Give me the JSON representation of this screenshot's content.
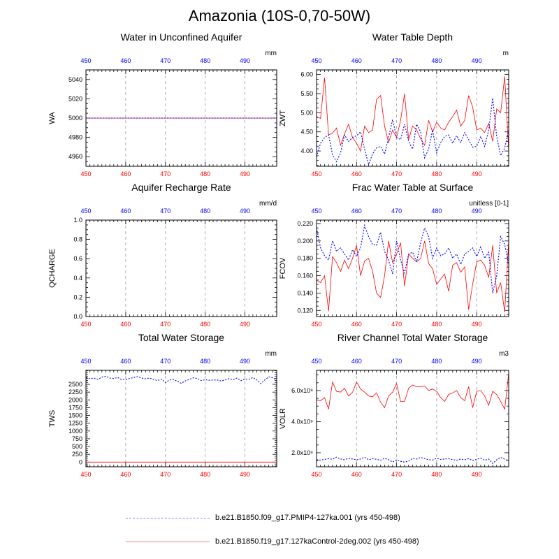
{
  "figure": {
    "title": "Amazonia (10S-0,70-50W)"
  },
  "colors": {
    "control": "#ff0000",
    "pmip": "#0000ff",
    "grid": "#9a9a9a"
  },
  "legend": {
    "pmip_label": "b.e21.B1850.f09_g17.PMIP4-127ka.001 (yrs 450-498)",
    "control_label": "b.e21.B1850.f19_g17.127kaControl-2deg.002 (yrs 450-498)"
  },
  "chart_data": [
    {
      "type": "line",
      "title": "Water in Unconfined Aquifer",
      "ylabel": "WA",
      "units": "mm",
      "xlim": [
        450,
        498
      ],
      "xticks": [
        450,
        460,
        470,
        480,
        490
      ],
      "ylim": [
        4950,
        5050
      ],
      "yticks": [
        4960,
        4980,
        5000,
        5020,
        5040
      ],
      "ytick_labels": [
        "4960",
        "4980",
        "5000",
        "5020",
        "5040"
      ],
      "x": [
        450,
        451,
        452,
        453,
        454,
        455,
        456,
        457,
        458,
        459,
        460,
        461,
        462,
        463,
        464,
        465,
        466,
        467,
        468,
        469,
        470,
        471,
        472,
        473,
        474,
        475,
        476,
        477,
        478,
        479,
        480,
        481,
        482,
        483,
        484,
        485,
        486,
        487,
        488,
        489,
        490,
        491,
        492,
        493,
        494,
        495,
        496,
        497,
        498
      ],
      "series": [
        {
          "name": "control",
          "values": [
            5000,
            5000,
            5000,
            5000,
            5000,
            5000,
            5000,
            5000,
            5000,
            5000,
            5000,
            5000,
            5000,
            5000,
            5000,
            5000,
            5000,
            5000,
            5000,
            5000,
            5000,
            5000,
            5000,
            5000,
            5000,
            5000,
            5000,
            5000,
            5000,
            5000,
            5000,
            5000,
            5000,
            5000,
            5000,
            5000,
            5000,
            5000,
            5000,
            5000,
            5000,
            5000,
            5000,
            5000,
            5000,
            5000,
            5000,
            5000,
            5000
          ]
        },
        {
          "name": "pmip",
          "values": [
            5000,
            5000,
            5000,
            5000,
            5000,
            5000,
            5000,
            5000,
            5000,
            5000,
            5000,
            5000,
            5000,
            5000,
            5000,
            5000,
            5000,
            5000,
            5000,
            5000,
            5000,
            5000,
            5000,
            5000,
            5000,
            5000,
            5000,
            5000,
            5000,
            5000,
            5000,
            5000,
            5000,
            5000,
            5000,
            5000,
            5000,
            5000,
            5000,
            5000,
            5000,
            5000,
            5000,
            5000,
            5000,
            5000,
            5000,
            5000,
            5000
          ]
        }
      ]
    },
    {
      "type": "line",
      "title": "Water Table Depth",
      "ylabel": "ZWT",
      "units": "m",
      "xlim": [
        450,
        498
      ],
      "xticks": [
        450,
        460,
        470,
        480,
        490
      ],
      "ylim": [
        3.6,
        6.12
      ],
      "yticks": [
        4.0,
        4.5,
        5.0,
        5.5,
        6.0
      ],
      "ytick_labels": [
        "4.00",
        "4.50",
        "5.00",
        "5.50",
        "6.00"
      ],
      "x": [
        450,
        451,
        452,
        453,
        454,
        455,
        456,
        457,
        458,
        459,
        460,
        461,
        462,
        463,
        464,
        465,
        466,
        467,
        468,
        469,
        470,
        471,
        472,
        473,
        474,
        475,
        476,
        477,
        478,
        479,
        480,
        481,
        482,
        483,
        484,
        485,
        486,
        487,
        488,
        489,
        490,
        491,
        492,
        493,
        494,
        495,
        496,
        497,
        498
      ],
      "series": [
        {
          "name": "control",
          "values": [
            4.9,
            4.85,
            5.92,
            4.42,
            4.47,
            4.6,
            4.15,
            4.45,
            4.7,
            4.35,
            4.2,
            4.0,
            4.65,
            4.48,
            4.55,
            5.35,
            5.45,
            4.65,
            4.22,
            4.55,
            4.35,
            4.8,
            5.5,
            4.3,
            4.65,
            4.55,
            4.32,
            4.15,
            4.8,
            4.5,
            4.75,
            4.6,
            4.55,
            4.75,
            4.9,
            5.07,
            4.65,
            4.8,
            5.45,
            5.15,
            4.55,
            4.6,
            4.48,
            4.72,
            4.25,
            5.1,
            5.0,
            5.95,
            4.0
          ]
        },
        {
          "name": "pmip",
          "values": [
            3.85,
            4.2,
            4.35,
            4.42,
            3.9,
            3.72,
            3.95,
            4.42,
            4.25,
            4.35,
            4.4,
            4.5,
            4.05,
            3.65,
            3.92,
            4.08,
            4.12,
            3.92,
            4.35,
            4.82,
            4.35,
            4.3,
            4.7,
            4.25,
            4.05,
            4.7,
            4.5,
            3.82,
            4.05,
            4.55,
            3.95,
            4.22,
            4.38,
            4.42,
            4.2,
            4.4,
            4.22,
            4.48,
            4.3,
            4.1,
            4.12,
            4.38,
            4.12,
            4.55,
            5.38,
            4.38,
            3.88,
            4.08,
            4.55
          ]
        }
      ]
    },
    {
      "type": "line",
      "title": "Aquifer Recharge Rate",
      "ylabel": "QCHARGE",
      "units": "mm/d",
      "xlim": [
        450,
        498
      ],
      "xticks": [
        450,
        460,
        470,
        480,
        490
      ],
      "ylim": [
        0,
        1
      ],
      "yticks": [
        0,
        0.2,
        0.4,
        0.6,
        0.8,
        1.0
      ],
      "ytick_labels": [
        "0.0",
        "0.2",
        "0.4",
        "0.6",
        "0.8",
        "1.0"
      ],
      "x": [
        450,
        451,
        452,
        453,
        454,
        455,
        456,
        457,
        458,
        459,
        460,
        461,
        462,
        463,
        464,
        465,
        466,
        467,
        468,
        469,
        470,
        471,
        472,
        473,
        474,
        475,
        476,
        477,
        478,
        479,
        480,
        481,
        482,
        483,
        484,
        485,
        486,
        487,
        488,
        489,
        490,
        491,
        492,
        493,
        494,
        495,
        496,
        497,
        498
      ],
      "series": [
        {
          "name": "control",
          "values": [
            0,
            0,
            0,
            0,
            0,
            0,
            0,
            0,
            0,
            0,
            0,
            0,
            0,
            0,
            0,
            0,
            0,
            0,
            0,
            0,
            0,
            0,
            0,
            0,
            0,
            0,
            0,
            0,
            0,
            0,
            0,
            0,
            0,
            0,
            0,
            0,
            0,
            0,
            0,
            0,
            0,
            0,
            0,
            0,
            0,
            0,
            0,
            0,
            0
          ]
        },
        {
          "name": "pmip",
          "values": [
            0,
            0,
            0,
            0,
            0,
            0,
            0,
            0,
            0,
            0,
            0,
            0,
            0,
            0,
            0,
            0,
            0,
            0,
            0,
            0,
            0,
            0,
            0,
            0,
            0,
            0,
            0,
            0,
            0,
            0,
            0,
            0,
            0,
            0,
            0,
            0,
            0,
            0,
            0,
            0,
            0,
            0,
            0,
            0,
            0,
            0,
            0,
            0,
            0
          ]
        }
      ]
    },
    {
      "type": "line",
      "title": "Frac Water Table at Surface",
      "ylabel": "FCOV",
      "units": "unitless [0-1]",
      "xlim": [
        450,
        498
      ],
      "xticks": [
        450,
        460,
        470,
        480,
        490
      ],
      "ylim": [
        0.113,
        0.224
      ],
      "yticks": [
        0.12,
        0.14,
        0.16,
        0.18,
        0.2,
        0.22
      ],
      "ytick_labels": [
        "0.120",
        "0.140",
        "0.160",
        "0.180",
        "0.200",
        "0.220"
      ],
      "x": [
        450,
        451,
        452,
        453,
        454,
        455,
        456,
        457,
        458,
        459,
        460,
        461,
        462,
        463,
        464,
        465,
        466,
        467,
        468,
        469,
        470,
        471,
        472,
        473,
        474,
        475,
        476,
        477,
        478,
        479,
        480,
        481,
        482,
        483,
        484,
        485,
        486,
        487,
        488,
        489,
        490,
        491,
        492,
        493,
        494,
        495,
        496,
        497,
        498
      ],
      "series": [
        {
          "name": "control",
          "values": [
            0.155,
            0.152,
            0.16,
            0.119,
            0.182,
            0.175,
            0.165,
            0.178,
            0.168,
            0.18,
            0.195,
            0.16,
            0.177,
            0.18,
            0.165,
            0.14,
            0.135,
            0.16,
            0.2,
            0.175,
            0.185,
            0.198,
            0.148,
            0.185,
            0.18,
            0.176,
            0.18,
            0.2,
            0.174,
            0.168,
            0.15,
            0.156,
            0.162,
            0.142,
            0.172,
            0.175,
            0.164,
            0.17,
            0.121,
            0.15,
            0.176,
            0.178,
            0.172,
            0.158,
            0.195,
            0.14,
            0.152,
            0.118,
            0.2
          ]
        },
        {
          "name": "pmip",
          "values": [
            0.215,
            0.192,
            0.183,
            0.178,
            0.2,
            0.188,
            0.192,
            0.185,
            0.178,
            0.19,
            0.182,
            0.192,
            0.218,
            0.205,
            0.196,
            0.195,
            0.21,
            0.188,
            0.178,
            0.162,
            0.2,
            0.178,
            0.163,
            0.185,
            0.187,
            0.176,
            0.198,
            0.215,
            0.205,
            0.18,
            0.192,
            0.183,
            0.185,
            0.192,
            0.18,
            0.185,
            0.173,
            0.185,
            0.188,
            0.192,
            0.182,
            0.193,
            0.18,
            0.187,
            0.14,
            0.16,
            0.205,
            0.196,
            0.173
          ]
        }
      ]
    },
    {
      "type": "line",
      "title": "Total Water Storage",
      "ylabel": "TWS",
      "units": "mm",
      "xlim": [
        450,
        498
      ],
      "xticks": [
        450,
        460,
        470,
        480,
        490
      ],
      "ylim": [
        -150,
        2950
      ],
      "yticks": [
        0,
        250,
        500,
        750,
        1000,
        1250,
        1500,
        1750,
        2000,
        2250,
        2500
      ],
      "ytick_labels": [
        "0",
        "250",
        "500",
        "750",
        "1000",
        "1250",
        "1500",
        "1750",
        "2000",
        "2250",
        "2500"
      ],
      "x": [
        450,
        451,
        452,
        453,
        454,
        455,
        456,
        457,
        458,
        459,
        460,
        461,
        462,
        463,
        464,
        465,
        466,
        467,
        468,
        469,
        470,
        471,
        472,
        473,
        474,
        475,
        476,
        477,
        478,
        479,
        480,
        481,
        482,
        483,
        484,
        485,
        486,
        487,
        488,
        489,
        490,
        491,
        492,
        493,
        494,
        495,
        496,
        497,
        498
      ],
      "series": [
        {
          "name": "control",
          "values": [
            0,
            0,
            0,
            0,
            0,
            0,
            0,
            0,
            0,
            0,
            0,
            0,
            0,
            0,
            0,
            0,
            0,
            0,
            0,
            0,
            0,
            0,
            0,
            0,
            0,
            0,
            0,
            0,
            0,
            0,
            0,
            0,
            0,
            0,
            0,
            0,
            0,
            0,
            0,
            0,
            0,
            0,
            0,
            0,
            0,
            0,
            0,
            0,
            0
          ]
        },
        {
          "name": "pmip",
          "values": [
            2720,
            2680,
            2700,
            2660,
            2730,
            2760,
            2700,
            2690,
            2720,
            2650,
            2660,
            2690,
            2720,
            2750,
            2700,
            2680,
            2700,
            2660,
            2620,
            2670,
            2560,
            2640,
            2660,
            2600,
            2530,
            2610,
            2660,
            2710,
            2690,
            2620,
            2650,
            2630,
            2640,
            2640,
            2610,
            2640,
            2680,
            2650,
            2700,
            2620,
            2670,
            2660,
            2720,
            2640,
            2520,
            2640,
            2740,
            2710,
            2640
          ]
        }
      ]
    },
    {
      "type": "line",
      "title": "River Channel Total Water Storage",
      "ylabel": "VOLR",
      "units": "m3",
      "xlim": [
        450,
        498
      ],
      "xticks": [
        450,
        460,
        470,
        480,
        490
      ],
      "ylim": [
        1100000000,
        7300000000
      ],
      "yticks": [
        2000000000,
        4000000000,
        6000000000
      ],
      "ytick_labels": [
        "2.0x10⁹",
        "4.0x10⁹",
        "6.0x10⁹"
      ],
      "x": [
        450,
        451,
        452,
        453,
        454,
        455,
        456,
        457,
        458,
        459,
        460,
        461,
        462,
        463,
        464,
        465,
        466,
        467,
        468,
        469,
        470,
        471,
        472,
        473,
        474,
        475,
        476,
        477,
        478,
        479,
        480,
        481,
        482,
        483,
        484,
        485,
        486,
        487,
        488,
        489,
        490,
        491,
        492,
        493,
        494,
        495,
        496,
        497,
        498
      ],
      "series": [
        {
          "name": "control",
          "values": [
            5400000000,
            5350000000,
            5550000000,
            4800000000,
            6550000000,
            5950000000,
            5900000000,
            6150000000,
            5650000000,
            5900000000,
            6550000000,
            6100000000,
            5900000000,
            5650000000,
            5600000000,
            5850000000,
            5250000000,
            4900000000,
            5650000000,
            5900000000,
            6450000000,
            5300000000,
            5300000000,
            6150000000,
            6350000000,
            6250000000,
            6250000000,
            6300000000,
            6000000000,
            6100000000,
            5950000000,
            5550000000,
            5300000000,
            5750000000,
            5850000000,
            6000000000,
            5550000000,
            5350000000,
            6250000000,
            4900000000,
            5950000000,
            6000000000,
            5650000000,
            5050000000,
            5950000000,
            5750000000,
            5300000000,
            4800000000,
            7100000000
          ]
        },
        {
          "name": "pmip",
          "values": [
            1550000000,
            1530000000,
            1570000000,
            1620000000,
            1580000000,
            1720000000,
            1600000000,
            1550000000,
            1650000000,
            1600000000,
            1550000000,
            1600000000,
            1720000000,
            1550000000,
            1620000000,
            1580000000,
            1520000000,
            1650000000,
            1560000000,
            1400000000,
            1550000000,
            1450000000,
            1400000000,
            1470000000,
            1650000000,
            1600000000,
            1700000000,
            1620000000,
            1560000000,
            1530000000,
            1650000000,
            1570000000,
            1600000000,
            1620000000,
            1560000000,
            1520000000,
            1600000000,
            1550000000,
            1620000000,
            1500000000,
            1580000000,
            1650000000,
            1520000000,
            1600000000,
            1310000000,
            1550000000,
            1700000000,
            1580000000,
            1500000000
          ]
        }
      ]
    }
  ]
}
